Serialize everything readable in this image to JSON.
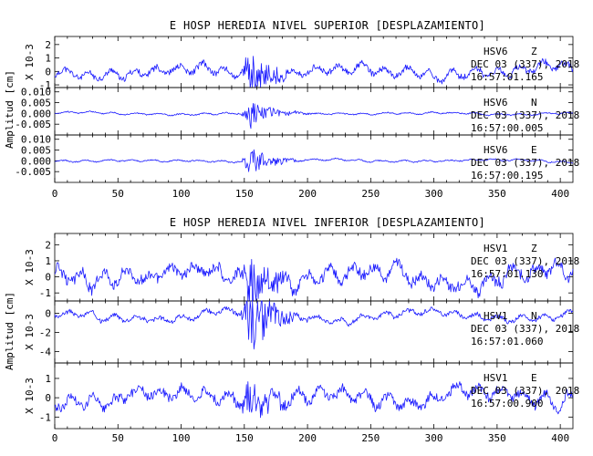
{
  "chart_data": [
    {
      "type": "line",
      "title": "E HOSP HEREDIA NIVEL SUPERIOR [DESPLAZAMIENTO]",
      "ylabel": "Amplitud [cm]",
      "xlim": [
        0,
        410
      ],
      "x_ticks": [
        "0",
        "50",
        "100",
        "150",
        "200",
        "250",
        "300",
        "350",
        "400"
      ],
      "panels": [
        {
          "channel": "HSV6 Z",
          "ann_channel": "HSV6",
          "ann_comp": "Z",
          "date": "DEC 03 (337), 2018",
          "time": "16:57:01.165",
          "scale_label": "X 10-3",
          "ylim": [
            -1.2,
            2.6
          ],
          "y_ticks": [
            "2",
            "1",
            "0",
            "-1"
          ],
          "y_tick_values": [
            2,
            1,
            0,
            -1
          ],
          "trace": {
            "base": 0.0,
            "amp": 0.45,
            "spike_amp": 2.2,
            "seed": 11
          }
        },
        {
          "channel": "HSV6 N",
          "ann_channel": "HSV6",
          "ann_comp": "N",
          "date": "DEC 03 (337), 2018",
          "time": "16:57:00.005",
          "scale_label": "",
          "ylim": [
            -0.01,
            0.012
          ],
          "y_ticks": [
            "0.010",
            "0.005",
            "0.000",
            "-0.005"
          ],
          "y_tick_values": [
            0.01,
            0.005,
            0.0,
            -0.005
          ],
          "trace": {
            "base": 0.0,
            "amp": 0.0006,
            "spike_amp": 0.0075,
            "seed": 23
          }
        },
        {
          "channel": "HSV6 E",
          "ann_channel": "HSV6",
          "ann_comp": "E",
          "date": "DEC 03 (337), 2018",
          "time": "16:57:00.195",
          "scale_label": "",
          "ylim": [
            -0.01,
            0.012
          ],
          "y_ticks": [
            "0.010",
            "0.005",
            "0.000",
            "-0.005"
          ],
          "y_tick_values": [
            0.01,
            0.005,
            0.0,
            -0.005
          ],
          "trace": {
            "base": 0.0,
            "amp": 0.0006,
            "spike_amp": 0.0072,
            "seed": 37
          }
        }
      ]
    },
    {
      "type": "line",
      "title": "E HOSP HEREDIA NIVEL INFERIOR [DESPLAZAMIENTO]",
      "ylabel": "Amplitud [cm]",
      "xlim": [
        0,
        410
      ],
      "x_ticks": [
        "0",
        "50",
        "100",
        "150",
        "200",
        "250",
        "300",
        "350",
        "400"
      ],
      "panels": [
        {
          "channel": "HSV1 Z",
          "ann_channel": "HSV1",
          "ann_comp": "Z",
          "date": "DEC 03 (337), 2018",
          "time": "16:57:01.130",
          "scale_label": "X 10-3",
          "ylim": [
            -1.5,
            2.7
          ],
          "y_ticks": [
            "2",
            "1",
            "0",
            "-1"
          ],
          "y_tick_values": [
            2,
            1,
            0,
            -1
          ],
          "trace": {
            "base": 0.0,
            "amp": 0.7,
            "spike_amp": 2.4,
            "seed": 51
          }
        },
        {
          "channel": "HSV1 N",
          "ann_channel": "HSV1",
          "ann_comp": "N",
          "date": "DEC 03 (337), 2018",
          "time": "16:57:01.060",
          "scale_label": "X 10-3",
          "ylim": [
            -5.2,
            1.3
          ],
          "y_ticks": [
            "0",
            "-2",
            "-4"
          ],
          "y_tick_values": [
            0,
            -2,
            -4
          ],
          "trace": {
            "base": -0.3,
            "amp": 0.45,
            "spike_amp": 4.3,
            "seed": 67
          }
        },
        {
          "channel": "HSV1 E",
          "ann_channel": "HSV1",
          "ann_comp": "E",
          "date": "DEC 03 (337), 2018",
          "time": "16:57:00.900",
          "scale_label": "X 10-3",
          "ylim": [
            -1.6,
            1.8
          ],
          "y_ticks": [
            "1",
            "0",
            "-1"
          ],
          "y_tick_values": [
            1,
            0,
            -1
          ],
          "trace": {
            "base": 0.0,
            "amp": 0.5,
            "spike_amp": 1.5,
            "seed": 79
          }
        }
      ]
    }
  ]
}
